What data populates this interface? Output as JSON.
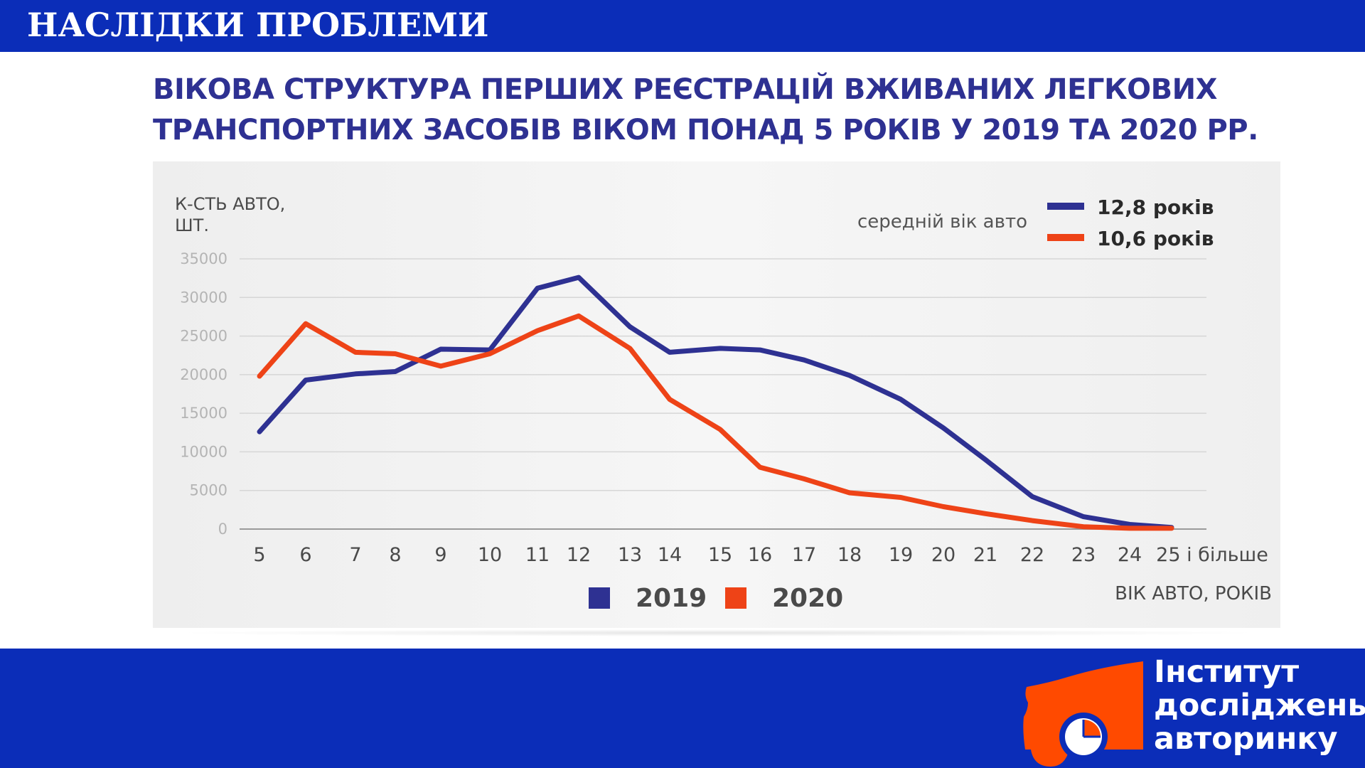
{
  "header": {
    "section_title": "НАСЛІДКИ ПРОБЛЕМИ"
  },
  "headline": {
    "line1": "ВІКОВА СТРУКТУРА ПЕРШИХ РЕЄСТРАЦІЙ ВЖИВАНИХ ЛЕГКОВИХ",
    "line2": "ТРАНСПОРТНИХ ЗАСОБІВ ВІКОМ ПОНАД 5 РОКІВ У 2019 ТА 2020 РР."
  },
  "logo": {
    "line1": "Інститут",
    "line2": "досліджень",
    "line3": "авторинку",
    "color": "#ff4a00"
  },
  "colors": {
    "bar": "#0b2db8",
    "series_2019": "#2e3192",
    "series_2020": "#ee4317",
    "grid": "#d6d6d6"
  },
  "chart_data": {
    "type": "line",
    "ylabel_line1": "К-СТЬ АВТО,",
    "ylabel_line2": "ШТ.",
    "xlabel": "ВІК АВТО, РОКІВ",
    "ylim": [
      0,
      35000
    ],
    "yticks": [
      "35000",
      "30000",
      "25000",
      "20000",
      "15000",
      "10000",
      "5000",
      "0"
    ],
    "categories": [
      "5",
      "6",
      "7",
      "8",
      "9",
      "10",
      "11",
      "12",
      "13",
      "14",
      "15",
      "16",
      "17",
      "18",
      "19",
      "20",
      "21",
      "22",
      "23",
      "24",
      "25 і більше"
    ],
    "grid": true,
    "legend_position": "bottom-center",
    "average_age": {
      "label": "середній вік авто",
      "entries": [
        {
          "series": "2019",
          "text": "12,8 років"
        },
        {
          "series": "2020",
          "text": "10,6 років"
        }
      ]
    },
    "series": [
      {
        "name": "2019",
        "values": [
          12600,
          19300,
          20100,
          20400,
          23300,
          23200,
          31200,
          32600,
          26200,
          22900,
          23400,
          23200,
          21900,
          19900,
          16800,
          13100,
          9000,
          4200,
          1600,
          600,
          200
        ]
      },
      {
        "name": "2020",
        "values": [
          19800,
          26600,
          22900,
          22700,
          21100,
          22700,
          25700,
          27600,
          23400,
          16800,
          12900,
          8000,
          6500,
          4700,
          4100,
          2900,
          2000,
          1100,
          300,
          100,
          100
        ]
      }
    ]
  }
}
